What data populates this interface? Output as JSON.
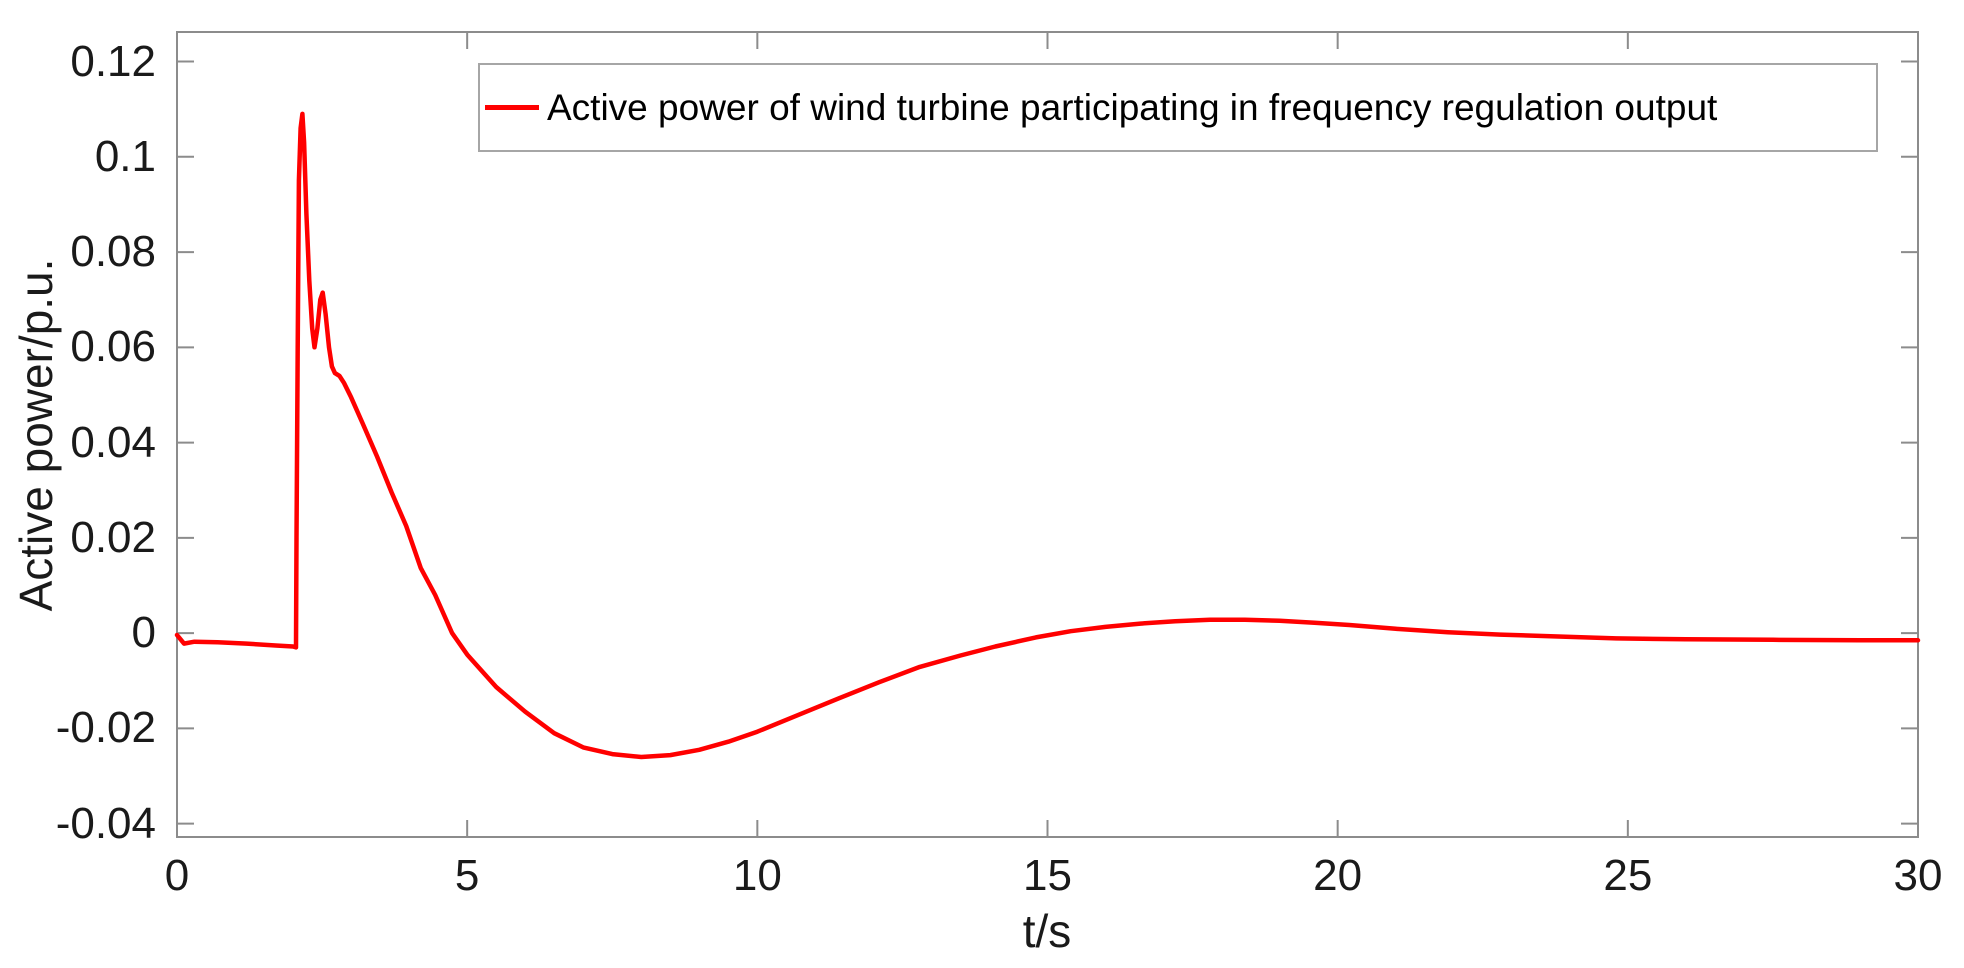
{
  "chart_data": {
    "type": "line",
    "title": "",
    "xlabel": "t/s",
    "ylabel": "Active power/p.u.",
    "xlim": [
      0,
      30
    ],
    "ylim": [
      -0.0428,
      0.1262
    ],
    "grid": false,
    "legend_position": "north-inside",
    "axis_color": "#8c8c8c",
    "text_color": "#1a1a1a",
    "background_color": "#ffffff",
    "xticks": {
      "values": [
        0,
        5,
        10,
        15,
        20,
        25,
        30
      ],
      "labels": [
        "0",
        "5",
        "10",
        "15",
        "20",
        "25",
        "30"
      ]
    },
    "yticks": {
      "values": [
        -0.04,
        -0.02,
        0,
        0.02,
        0.04,
        0.06,
        0.08,
        0.1,
        0.12
      ],
      "labels": [
        "-0.04",
        "-0.02",
        "0",
        "0.02",
        "0.04",
        "0.06",
        "0.08",
        "0.1",
        "0.12"
      ]
    },
    "series": [
      {
        "name": "Active power of wind turbine participating in frequency regulation output",
        "color": "#ff0000",
        "line_width": 4.5,
        "points": [
          [
            0.0,
            -0.0004
          ],
          [
            0.12,
            -0.0022
          ],
          [
            0.3,
            -0.0018
          ],
          [
            0.7,
            -0.0019
          ],
          [
            1.2,
            -0.0022
          ],
          [
            1.7,
            -0.0026
          ],
          [
            2.0,
            -0.0028
          ],
          [
            2.05,
            -0.003
          ],
          [
            2.06,
            0.02
          ],
          [
            2.08,
            0.06
          ],
          [
            2.1,
            0.095
          ],
          [
            2.13,
            0.106
          ],
          [
            2.16,
            0.109
          ],
          [
            2.19,
            0.103
          ],
          [
            2.23,
            0.088
          ],
          [
            2.28,
            0.074
          ],
          [
            2.33,
            0.064
          ],
          [
            2.37,
            0.06
          ],
          [
            2.42,
            0.064
          ],
          [
            2.47,
            0.07
          ],
          [
            2.51,
            0.0715
          ],
          [
            2.56,
            0.067
          ],
          [
            2.62,
            0.06
          ],
          [
            2.67,
            0.056
          ],
          [
            2.72,
            0.0546
          ],
          [
            2.8,
            0.054
          ],
          [
            2.88,
            0.0525
          ],
          [
            3.0,
            0.0495
          ],
          [
            3.2,
            0.044
          ],
          [
            3.45,
            0.037
          ],
          [
            3.7,
            0.0295
          ],
          [
            3.95,
            0.0225
          ],
          [
            4.2,
            0.0137
          ],
          [
            4.45,
            0.008
          ],
          [
            4.74,
            0.0
          ],
          [
            5.0,
            -0.0045
          ],
          [
            5.5,
            -0.0113
          ],
          [
            6.0,
            -0.0165
          ],
          [
            6.5,
            -0.021
          ],
          [
            7.0,
            -0.024
          ],
          [
            7.5,
            -0.0254
          ],
          [
            8.0,
            -0.026
          ],
          [
            8.5,
            -0.0256
          ],
          [
            9.0,
            -0.0245
          ],
          [
            9.5,
            -0.0228
          ],
          [
            10.0,
            -0.0207
          ],
          [
            10.7,
            -0.0172
          ],
          [
            11.4,
            -0.0137
          ],
          [
            12.1,
            -0.0103
          ],
          [
            12.8,
            -0.0071
          ],
          [
            13.5,
            -0.0047
          ],
          [
            14.1,
            -0.0028
          ],
          [
            14.8,
            -0.0009
          ],
          [
            15.4,
            0.0004
          ],
          [
            16.0,
            0.0013
          ],
          [
            16.6,
            0.002
          ],
          [
            17.2,
            0.0025
          ],
          [
            17.8,
            0.0028
          ],
          [
            18.4,
            0.0028
          ],
          [
            19.0,
            0.0026
          ],
          [
            19.6,
            0.0022
          ],
          [
            20.2,
            0.0017
          ],
          [
            21.0,
            0.0009
          ],
          [
            21.9,
            0.0002
          ],
          [
            22.8,
            -0.0003
          ],
          [
            23.8,
            -0.0007
          ],
          [
            24.8,
            -0.0011
          ],
          [
            26.0,
            -0.0013
          ],
          [
            27.5,
            -0.0014
          ],
          [
            29.0,
            -0.0015
          ],
          [
            30.0,
            -0.0015
          ]
        ]
      }
    ]
  }
}
